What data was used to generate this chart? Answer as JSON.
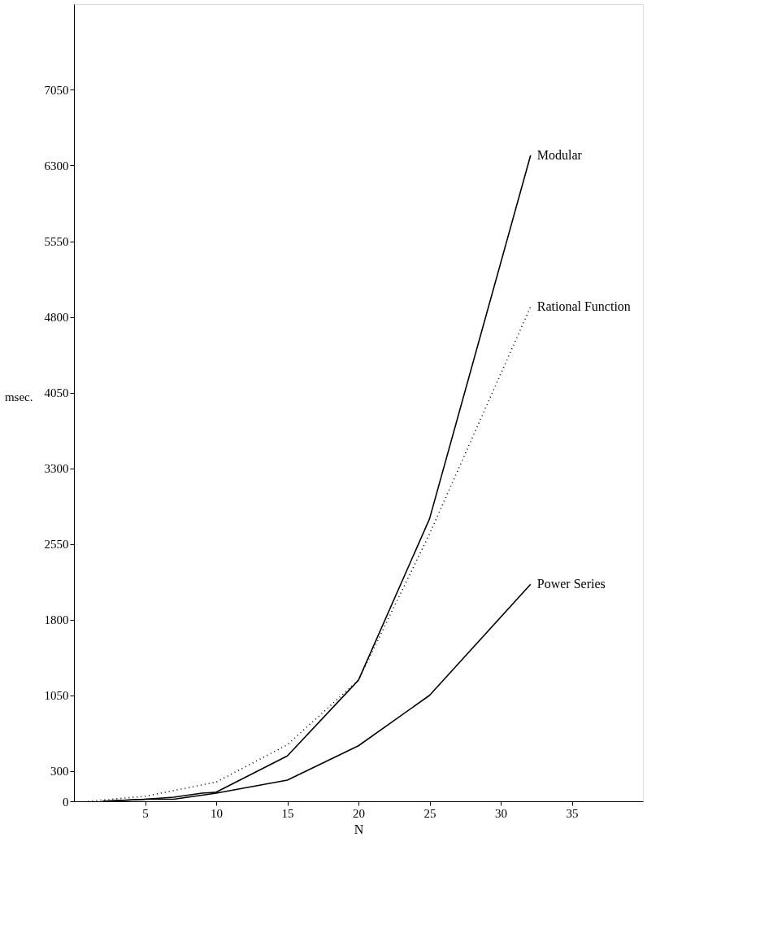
{
  "chart_data": {
    "type": "line",
    "xlabel": "N",
    "ylabel": "msec.",
    "xlim": [
      0,
      40
    ],
    "xticks": [
      5,
      10,
      15,
      20,
      25,
      30,
      35
    ],
    "ylim": [
      0,
      7900
    ],
    "yticks": [
      0,
      300,
      1050,
      1800,
      2550,
      3300,
      4050,
      4800,
      5550,
      6300,
      7050
    ],
    "grid": false,
    "marker": "none",
    "series": [
      {
        "name": "Modular",
        "color": "#000000",
        "line_style": "solid",
        "x": [
          2,
          5,
          7,
          9,
          10,
          15,
          20,
          25,
          32.1
        ],
        "values": [
          0,
          20,
          40,
          80,
          90,
          450,
          1200,
          2800,
          6400
        ]
      },
      {
        "name": "Rational Function",
        "color": "#000000",
        "line_style": "dotted",
        "x": [
          1,
          5,
          10,
          15,
          20,
          25,
          32.1
        ],
        "values": [
          0,
          50,
          190,
          560,
          1200,
          2650,
          4900
        ]
      },
      {
        "name": "Power Series",
        "color": "#000000",
        "line_style": "solid",
        "x": [
          2,
          5,
          7,
          9,
          10,
          15,
          20,
          25,
          32.1
        ],
        "values": [
          0,
          20,
          20,
          60,
          80,
          210,
          550,
          1050,
          2150
        ]
      }
    ]
  }
}
